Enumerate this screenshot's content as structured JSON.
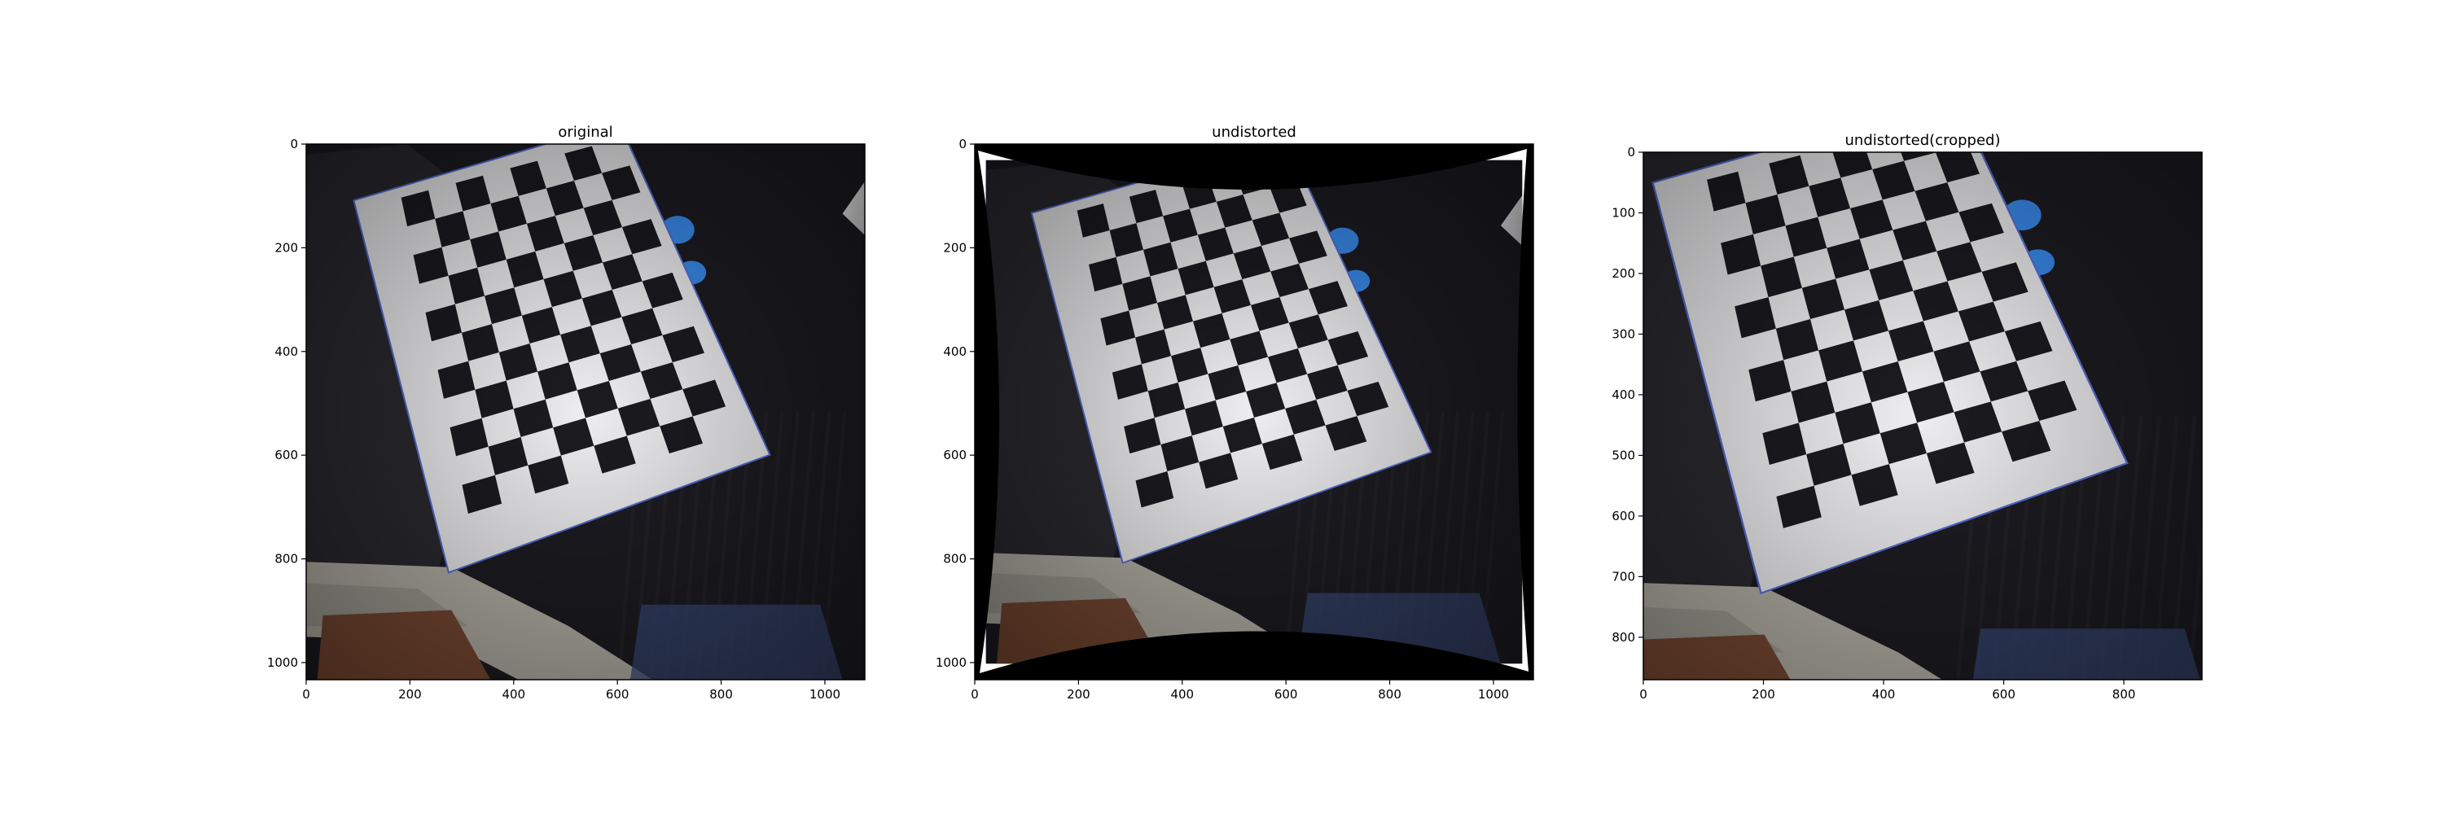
{
  "figure": {
    "panels": [
      {
        "id": "original",
        "title": "original",
        "x_ticks": [
          0,
          200,
          400,
          600,
          800,
          1000
        ],
        "y_ticks": [
          0,
          200,
          400,
          600,
          800,
          1000
        ],
        "x_range": [
          0,
          1077
        ],
        "y_range": [
          0,
          1033
        ],
        "barrel_border": false
      },
      {
        "id": "undistorted",
        "title": "undistorted",
        "x_ticks": [
          0,
          200,
          400,
          600,
          800,
          1000
        ],
        "y_ticks": [
          0,
          200,
          400,
          600,
          800,
          1000
        ],
        "x_range": [
          0,
          1077
        ],
        "y_range": [
          0,
          1033
        ],
        "barrel_border": true
      },
      {
        "id": "undistorted-cropped",
        "title": "undistorted(cropped)",
        "x_ticks": [
          0,
          200,
          400,
          600,
          800
        ],
        "y_ticks": [
          0,
          100,
          200,
          300,
          400,
          500,
          600,
          700,
          800
        ],
        "x_range": [
          0,
          930
        ],
        "y_range": [
          0,
          870
        ],
        "barrel_border": false
      }
    ],
    "colors": {
      "background": "#1c1c22",
      "board_white": "#eeeef0",
      "board_black": "#1b1b20",
      "blue_glove": "#3a8df0",
      "pants": "#b6b3a8",
      "box": "#7a4a33",
      "shirt": "#2a2a30"
    }
  }
}
